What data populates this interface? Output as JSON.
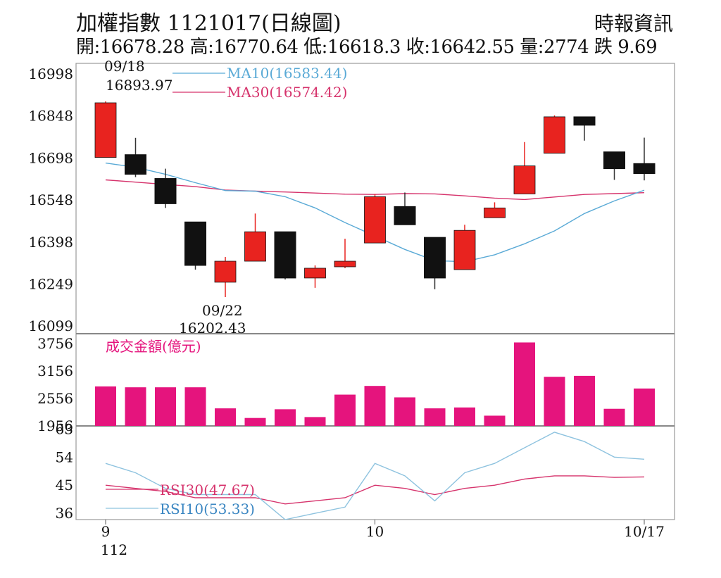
{
  "header": {
    "title": "加權指數 1121017(日線圖)",
    "source": "時報資訊",
    "stats": "開:16678.28 高:16770.64 低:16618.3 收:16642.55 量:2774 跌 9.69"
  },
  "colors": {
    "up": "#e8231f",
    "down": "#111111",
    "volume": "#e5147d",
    "ma10": "#5aaad6",
    "ma30": "#d6336c",
    "rsi10": "#8ec3df",
    "rsi30": "#d6336c",
    "grid": "#bbbbbb"
  },
  "chart_data": [
    {
      "type": "candlestick",
      "panel": "price",
      "ylim": [
        16099,
        16998
      ],
      "yticks": [
        "16998",
        "16848",
        "16698",
        "16548",
        "16398",
        "16249",
        "16099"
      ],
      "candles": [
        {
          "o": 16700,
          "h": 16900,
          "l": 16700,
          "c": 16895
        },
        {
          "o": 16710,
          "h": 16770,
          "l": 16630,
          "c": 16640
        },
        {
          "o": 16625,
          "h": 16660,
          "l": 16520,
          "c": 16535
        },
        {
          "o": 16470,
          "h": 16470,
          "l": 16300,
          "c": 16315
        },
        {
          "o": 16255,
          "h": 16345,
          "l": 16202,
          "c": 16330
        },
        {
          "o": 16330,
          "h": 16500,
          "l": 16330,
          "c": 16435
        },
        {
          "o": 16435,
          "h": 16435,
          "l": 16265,
          "c": 16270
        },
        {
          "o": 16270,
          "h": 16315,
          "l": 16235,
          "c": 16305
        },
        {
          "o": 16310,
          "h": 16410,
          "l": 16305,
          "c": 16330
        },
        {
          "o": 16395,
          "h": 16570,
          "l": 16395,
          "c": 16560
        },
        {
          "o": 16525,
          "h": 16575,
          "l": 16460,
          "c": 16460
        },
        {
          "o": 16415,
          "h": 16415,
          "l": 16230,
          "c": 16270
        },
        {
          "o": 16300,
          "h": 16460,
          "l": 16300,
          "c": 16440
        },
        {
          "o": 16485,
          "h": 16540,
          "l": 16485,
          "c": 16520
        },
        {
          "o": 16570,
          "h": 16755,
          "l": 16570,
          "c": 16670
        },
        {
          "o": 16715,
          "h": 16850,
          "l": 16715,
          "c": 16845
        },
        {
          "o": 16845,
          "h": 16845,
          "l": 16760,
          "c": 16815
        },
        {
          "o": 16720,
          "h": 16720,
          "l": 16620,
          "c": 16660
        },
        {
          "o": 16678.28,
          "h": 16770.64,
          "l": 16618.3,
          "c": 16642.55
        }
      ],
      "ma10": {
        "legend": "MA10(16583.44)",
        "values": [
          16680,
          16665,
          16640,
          16610,
          16582,
          16580,
          16560,
          16520,
          16468,
          16420,
          16372,
          16332,
          16328,
          16353,
          16392,
          16438,
          16500,
          16545,
          16583.44
        ]
      },
      "ma30": {
        "legend": "MA30(16574.42)",
        "values": [
          16620,
          16612,
          16604,
          16596,
          16584,
          16580,
          16577,
          16573,
          16569,
          16568,
          16571,
          16570,
          16563,
          16555,
          16550,
          16559,
          16568,
          16571,
          16574.42
        ]
      },
      "annotations": [
        {
          "label_date": "09/18",
          "label_value": "16893.97",
          "index": 0,
          "position": "above"
        },
        {
          "label_date": "09/22",
          "label_value": "16202.43",
          "index": 4,
          "position": "below"
        }
      ]
    },
    {
      "type": "bar",
      "panel": "volume",
      "label": "成交金額(億元)",
      "ylim": [
        1956,
        3756
      ],
      "yticks": [
        "3756",
        "3156",
        "2556",
        "1956"
      ],
      "values": [
        2820,
        2800,
        2800,
        2800,
        2340,
        2130,
        2320,
        2150,
        2640,
        2830,
        2580,
        2340,
        2360,
        2180,
        3780,
        3030,
        3050,
        2330,
        2774
      ]
    },
    {
      "type": "line",
      "panel": "rsi",
      "ylim": [
        34,
        64
      ],
      "yticks": [
        "63",
        "54",
        "45",
        "36"
      ],
      "series": [
        {
          "name": "RSI10(53.33)",
          "values": [
            52,
            49,
            44,
            42,
            42,
            42,
            34,
            36,
            38,
            52,
            48,
            40,
            49,
            52,
            57,
            62,
            59,
            54,
            53.33
          ]
        },
        {
          "name": "RSI30(47.67)",
          "values": [
            45,
            44,
            43,
            41,
            41,
            41,
            39,
            40,
            41,
            45,
            44,
            42,
            44,
            45,
            47,
            48,
            48,
            47.5,
            47.67
          ]
        }
      ],
      "xticks": [
        {
          "index": 0,
          "label": "9",
          "sub": "112"
        },
        {
          "index": 9,
          "label": "10",
          "sub": ""
        },
        {
          "index": 18,
          "label": "10/17",
          "sub": ""
        }
      ]
    }
  ]
}
